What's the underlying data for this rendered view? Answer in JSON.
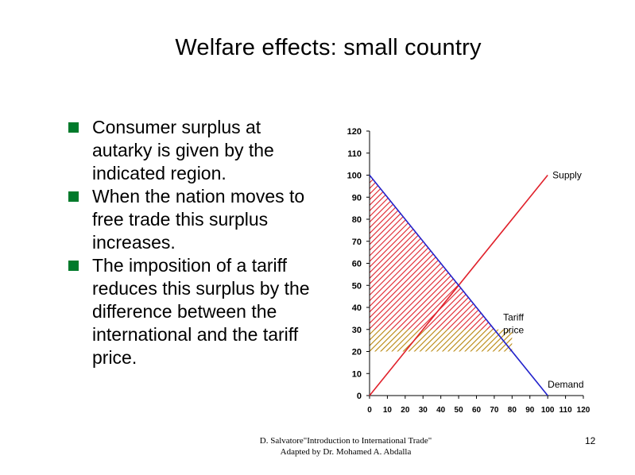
{
  "title": "Welfare effects: small country",
  "bullets": [
    "Consumer surplus at autarky is given by the indicated region.",
    "When the nation moves to free trade this surplus increases.",
    "The imposition of a tariff reduces this surplus by the difference between the international and the tariff price."
  ],
  "chart_data": {
    "type": "line",
    "x_ticks": [
      0,
      10,
      20,
      30,
      40,
      50,
      60,
      70,
      80,
      90,
      100,
      110,
      120
    ],
    "y_ticks": [
      0,
      10,
      20,
      30,
      40,
      50,
      60,
      70,
      80,
      90,
      100,
      110,
      120
    ],
    "xlim": [
      0,
      120
    ],
    "ylim": [
      0,
      120
    ],
    "grid": false,
    "series": [
      {
        "name": "Supply",
        "color": "#e0202a",
        "points": [
          [
            0,
            0
          ],
          [
            100,
            100
          ]
        ]
      },
      {
        "name": "Demand",
        "color": "#2222cc",
        "points": [
          [
            0,
            100
          ],
          [
            100,
            0
          ]
        ]
      }
    ],
    "annotations": [
      {
        "text": "Supply",
        "at": [
          100,
          100
        ]
      },
      {
        "text": "Tariff",
        "at": [
          75,
          34
        ]
      },
      {
        "text": "price",
        "at": [
          75,
          28
        ]
      },
      {
        "text": "Demand",
        "at": [
          100,
          5
        ]
      }
    ],
    "regions": [
      {
        "label": "consumer surplus at autarky",
        "color": "#e0202a",
        "y_range": [
          50,
          100
        ]
      },
      {
        "label": "tariff price band",
        "color": "#b8860b",
        "y_range": [
          20,
          30
        ],
        "x_max": 80
      }
    ],
    "levels": {
      "autarky_price": 50,
      "tariff_price": 30,
      "free_trade_price": 20
    }
  },
  "footer": {
    "line1": "D. Salvatore\"Introduction to International Trade\"",
    "line2": "Adapted by Dr. Mohamed A. Abdalla"
  },
  "page_number": "12",
  "colors": {
    "bullet_mark": "#007a2b",
    "axis": "#000000",
    "supply": "#e0202a",
    "demand": "#2222cc",
    "hatch_red": "#e0202a",
    "hatch_gold": "#b8860b"
  }
}
